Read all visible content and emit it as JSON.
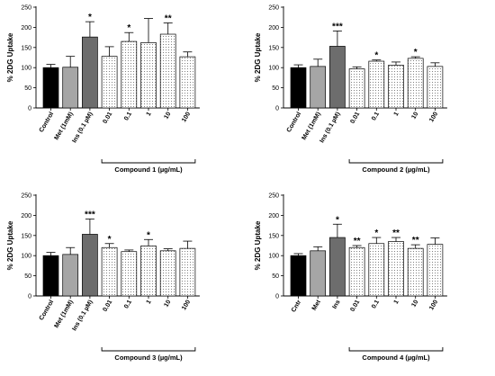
{
  "chart_data": [
    {
      "type": "bar",
      "ylabel": "% 2DG Uptake",
      "ylim": [
        0,
        250
      ],
      "yticks": [
        0,
        50,
        100,
        150,
        200,
        250
      ],
      "categories": [
        "Control",
        "Met (1mM)",
        "Ins (0.1 µM)",
        "0.01",
        "0.1",
        "1",
        "10",
        "100"
      ],
      "values": [
        100,
        101,
        176,
        128,
        165,
        162,
        183,
        127
      ],
      "errors": [
        8,
        27,
        38,
        24,
        22,
        60,
        28,
        12
      ],
      "significance": [
        "",
        "",
        "*",
        "",
        "*",
        "",
        "**",
        ""
      ],
      "group_label": "Compound 1 (µg/mL)",
      "bar_styles": [
        "black",
        "light-gray",
        "dark-gray",
        "dotted",
        "dotted",
        "dotted",
        "dotted",
        "dotted"
      ]
    },
    {
      "type": "bar",
      "ylabel": "% 2DG Uptake",
      "ylim": [
        0,
        250
      ],
      "yticks": [
        0,
        50,
        100,
        150,
        200,
        250
      ],
      "categories": [
        "Control",
        "Met (1mM)",
        "Ins (0.1 µM)",
        "0.01",
        "0.1",
        "1",
        "10",
        "100"
      ],
      "values": [
        100,
        103,
        153,
        97,
        116,
        106,
        123,
        103
      ],
      "errors": [
        7,
        18,
        38,
        5,
        3,
        8,
        4,
        9
      ],
      "significance": [
        "",
        "",
        "***",
        "",
        "*",
        "",
        "*",
        ""
      ],
      "group_label": "Compound 2 (µg/mL)",
      "bar_styles": [
        "black",
        "light-gray",
        "dark-gray",
        "dotted",
        "dotted",
        "dotted",
        "dotted",
        "dotted"
      ]
    },
    {
      "type": "bar",
      "ylabel": "% 2DG Uptake",
      "ylim": [
        0,
        250
      ],
      "yticks": [
        0,
        50,
        100,
        150,
        200,
        250
      ],
      "categories": [
        "Control",
        "Met (1mM)",
        "Ins (0.1 µM)",
        "0.01",
        "0.1",
        "1",
        "10",
        "100"
      ],
      "values": [
        100,
        103,
        153,
        120,
        110,
        124,
        112,
        118
      ],
      "errors": [
        8,
        17,
        38,
        10,
        4,
        16,
        5,
        18
      ],
      "significance": [
        "",
        "",
        "***",
        "*",
        "",
        "*",
        "",
        ""
      ],
      "group_label": "Compound 3 (µg/mL)",
      "bar_styles": [
        "black",
        "light-gray",
        "dark-gray",
        "dotted",
        "dotted",
        "dotted",
        "dotted",
        "dotted"
      ]
    },
    {
      "type": "bar",
      "ylabel": "% 2DG Uptake",
      "ylim": [
        0,
        250
      ],
      "yticks": [
        0,
        50,
        100,
        150,
        200,
        250
      ],
      "categories": [
        "Cntr",
        "Met",
        "Ins",
        "0.01",
        "0.1",
        "1",
        "10",
        "100"
      ],
      "values": [
        100,
        112,
        145,
        120,
        130,
        135,
        118,
        128
      ],
      "errors": [
        5,
        10,
        33,
        5,
        15,
        10,
        9,
        16
      ],
      "significance": [
        "",
        "",
        "*",
        "**",
        "*",
        "**",
        "**",
        ""
      ],
      "group_label": "Compound 4 (µg/mL)",
      "bar_styles": [
        "black",
        "light-gray",
        "dark-gray",
        "dotted",
        "dotted",
        "dotted",
        "dotted",
        "dotted"
      ]
    }
  ]
}
